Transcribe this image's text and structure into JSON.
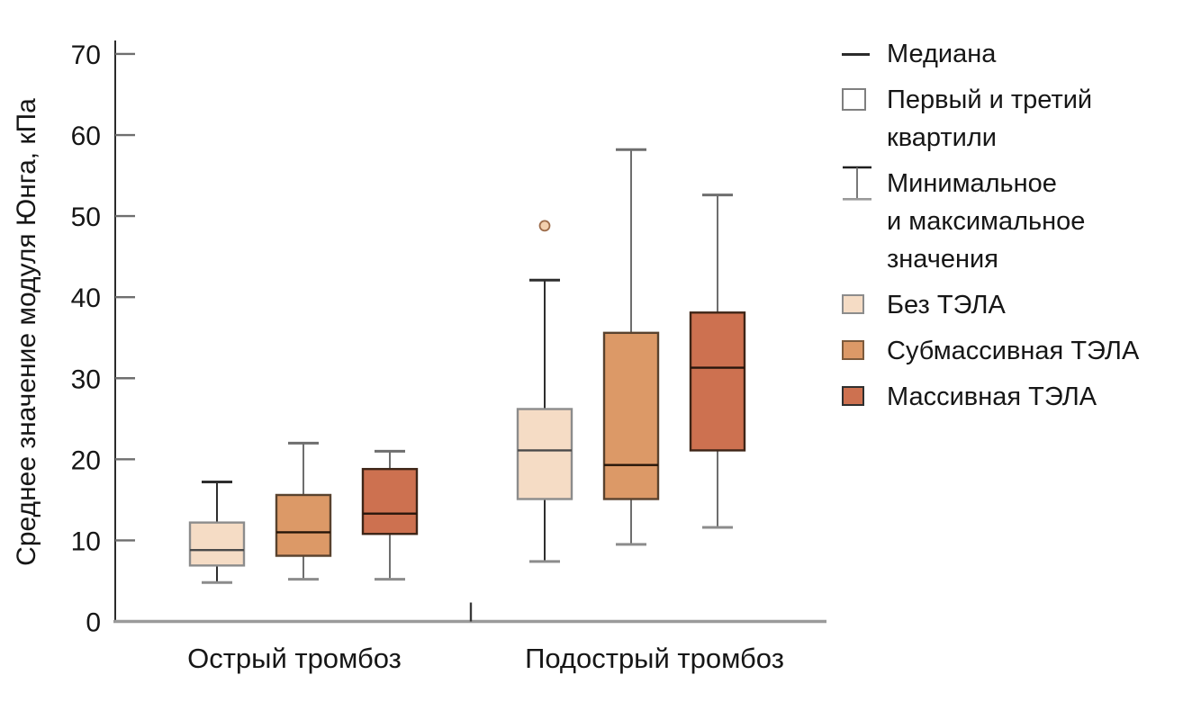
{
  "chart_data": {
    "type": "boxplot",
    "title": "",
    "xlabel": "",
    "ylabel": "Среднее значение модуля Юнга, кПа",
    "ylim": [
      0,
      70
    ],
    "yticks": [
      0,
      10,
      20,
      30,
      40,
      50,
      60,
      70
    ],
    "grid": false,
    "legend_position": "right",
    "groups": [
      "Острый тромбоз",
      "Подострый тромбоз"
    ],
    "series": [
      {
        "name": "Без ТЭЛА",
        "fill": "#f5dcc5",
        "border": "#8c8c8c",
        "median_color": "#4a4a4a",
        "whisker_color": "#2e2e2e",
        "cap_color": "#8c8c8c",
        "outlier_fill": "#f2cfae",
        "outlier_border": "#9c6b4a",
        "boxes": [
          {
            "group": "Острый тромбоз",
            "min": 4.8,
            "q1": 6.9,
            "median": 8.8,
            "q3": 12.2,
            "max": 17.2,
            "outliers": []
          },
          {
            "group": "Подострый тромбоз",
            "min": 7.4,
            "q1": 15.1,
            "median": 21.1,
            "q3": 26.2,
            "max": 42.1,
            "outliers": [
              48.8
            ]
          }
        ]
      },
      {
        "name": "Субмассивная ТЭЛА",
        "fill": "#dc9967",
        "border": "#59422e",
        "median_color": "#241408",
        "whisker_color": "#6e6e6e",
        "cap_color": "#8c8c8c",
        "outlier_fill": "#e8b58c",
        "outlier_border": "#59422e",
        "boxes": [
          {
            "group": "Острый тромбоз",
            "min": 5.2,
            "q1": 8.1,
            "median": 11.0,
            "q3": 15.6,
            "max": 22.0,
            "outliers": []
          },
          {
            "group": "Подострый тромбоз",
            "min": 9.5,
            "q1": 15.1,
            "median": 19.3,
            "q3": 35.6,
            "max": 58.2,
            "outliers": []
          }
        ]
      },
      {
        "name": "Массивная ТЭЛА",
        "fill": "#cd7150",
        "border": "#3e2517",
        "median_color": "#27150c",
        "whisker_color": "#6e6e6e",
        "cap_color": "#8c8c8c",
        "outlier_fill": "#dd9a78",
        "outlier_border": "#3e2517",
        "boxes": [
          {
            "group": "Острый тромбоз",
            "min": 5.2,
            "q1": 10.8,
            "median": 13.3,
            "q3": 18.8,
            "max": 21.0,
            "outliers": []
          },
          {
            "group": "Подострый тромбоз",
            "min": 11.6,
            "q1": 21.1,
            "median": 31.3,
            "q3": 38.1,
            "max": 52.6,
            "outliers": []
          }
        ]
      }
    ]
  },
  "legend": {
    "items": [
      {
        "key": "median",
        "icon": "median-line-icon",
        "label": "Медиана"
      },
      {
        "key": "quartiles",
        "icon": "quartile-box-icon",
        "label": "Первый и третий\nквартили"
      },
      {
        "key": "minmax",
        "icon": "whisker-icon",
        "label": "Минимальное\nи максимальное\nзначения"
      },
      {
        "key": "no-pe",
        "icon": "color-swatch",
        "color": "#f5dcc5",
        "border": "#8c8c8c",
        "label": "Без ТЭЛА"
      },
      {
        "key": "submassive-pe",
        "icon": "color-swatch",
        "color": "#dc9967",
        "border": "#7c5a3c",
        "label": "Субмассивная ТЭЛА"
      },
      {
        "key": "massive-pe",
        "icon": "color-swatch",
        "color": "#cd7150",
        "border": "#2f2f2f",
        "label": "Массивная ТЭЛА"
      }
    ]
  }
}
